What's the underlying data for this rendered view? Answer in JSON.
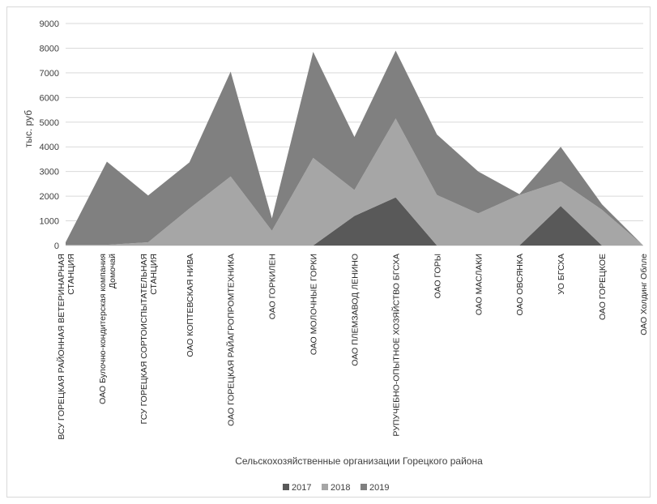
{
  "chart_data": {
    "type": "area",
    "stacked": true,
    "ylabel": "тыс. руб",
    "xlabel": "Сельскохозяйственные организации Горецкого района",
    "ylim": [
      0,
      9000
    ],
    "yticks": [
      0,
      1000,
      2000,
      3000,
      4000,
      5000,
      6000,
      7000,
      8000,
      9000
    ],
    "grid": true,
    "legend_position": "bottom",
    "categories": [
      [
        "ВСУ ГОРЕЦКАЯ РАЙОННАЯ ВЕТЕРИНАРНАЯ",
        "СТАНЦИЯ"
      ],
      [
        "ОАО Булочно-кондитерская компания",
        "Домочай"
      ],
      [
        "ГСУ ГОРЕЦКАЯ СОРТОИСПЫТАТЕЛЬНАЯ",
        "СТАНЦИЯ"
      ],
      [
        "ОАО КОПТЕВСКАЯ НИВА"
      ],
      [
        "ОАО ГОРЕЦКАЯ РАЙАГРОПРОМТЕХНИКА"
      ],
      [
        "ОАО ГОРКИЛЕН"
      ],
      [
        "ОАО МОЛОЧНЫЕ ГОРКИ"
      ],
      [
        "ОАО ПЛЕМЗАВОД ЛЕНИНО"
      ],
      [
        "РУПУЧЕБНО-ОПЫТНОЕ ХОЗЯЙСТВО БГСХА"
      ],
      [
        "ОАО ГОРЫ"
      ],
      [
        "ОАО МАСЛАКИ"
      ],
      [
        "ОАО ОВСЯНКА"
      ],
      [
        "УО БГСХА"
      ],
      [
        "ОАО ГОРЕЦКОЕ"
      ],
      [
        "ОАО Холдинг Облле"
      ]
    ],
    "series": [
      {
        "name": "2017",
        "color": "#595959",
        "values": [
          0,
          0,
          0,
          0,
          0,
          0,
          0,
          1200,
          1950,
          0,
          0,
          0,
          1600,
          0,
          0
        ]
      },
      {
        "name": "2018",
        "color": "#a6a6a6",
        "values": [
          30,
          30,
          130,
          1500,
          2800,
          600,
          3550,
          1050,
          3200,
          2050,
          1300,
          2050,
          1000,
          1450,
          0
        ]
      },
      {
        "name": "2019",
        "color": "#808080",
        "values": [
          100,
          3370,
          1900,
          1870,
          4250,
          500,
          4300,
          2150,
          2750,
          2450,
          1700,
          30,
          1400,
          220,
          0
        ]
      }
    ]
  }
}
